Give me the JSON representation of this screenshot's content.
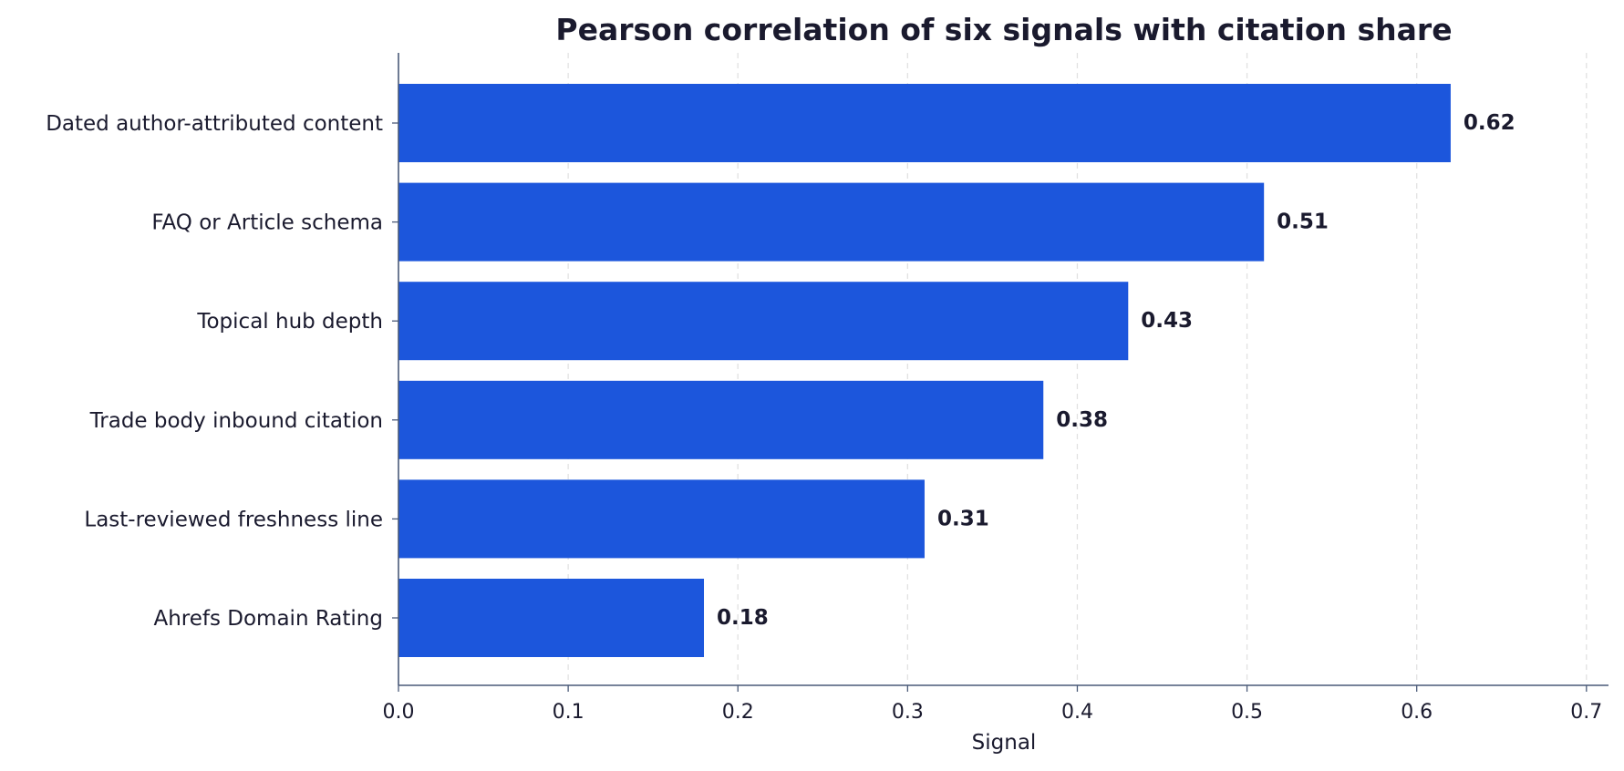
{
  "chart_data": {
    "type": "bar",
    "orientation": "horizontal",
    "title": "Pearson correlation of six signals with citation share",
    "xlabel": "Signal",
    "ylabel": "",
    "categories": [
      "Dated author-attributed content",
      "FAQ or Article schema",
      "Topical hub depth",
      "Trade body inbound citation",
      "Last-reviewed freshness line",
      "Ahrefs Domain Rating"
    ],
    "values": [
      0.62,
      0.51,
      0.43,
      0.38,
      0.31,
      0.18
    ],
    "value_labels": [
      "0.62",
      "0.51",
      "0.43",
      "0.38",
      "0.31",
      "0.18"
    ],
    "xlim": [
      0,
      0.713
    ],
    "xticks": [
      0.0,
      0.1,
      0.2,
      0.3,
      0.4,
      0.5,
      0.6,
      0.7
    ],
    "xtick_labels": [
      "0.0",
      "0.1",
      "0.2",
      "0.3",
      "0.4",
      "0.5",
      "0.6",
      "0.7"
    ],
    "grid": "vertical dashed",
    "legend": "none"
  },
  "colors": {
    "bar": "#1c56dc",
    "text": "#1a1a2e",
    "axis": "#4a5a78",
    "grid": "#e2e2e2",
    "background": "#ffffff"
  }
}
